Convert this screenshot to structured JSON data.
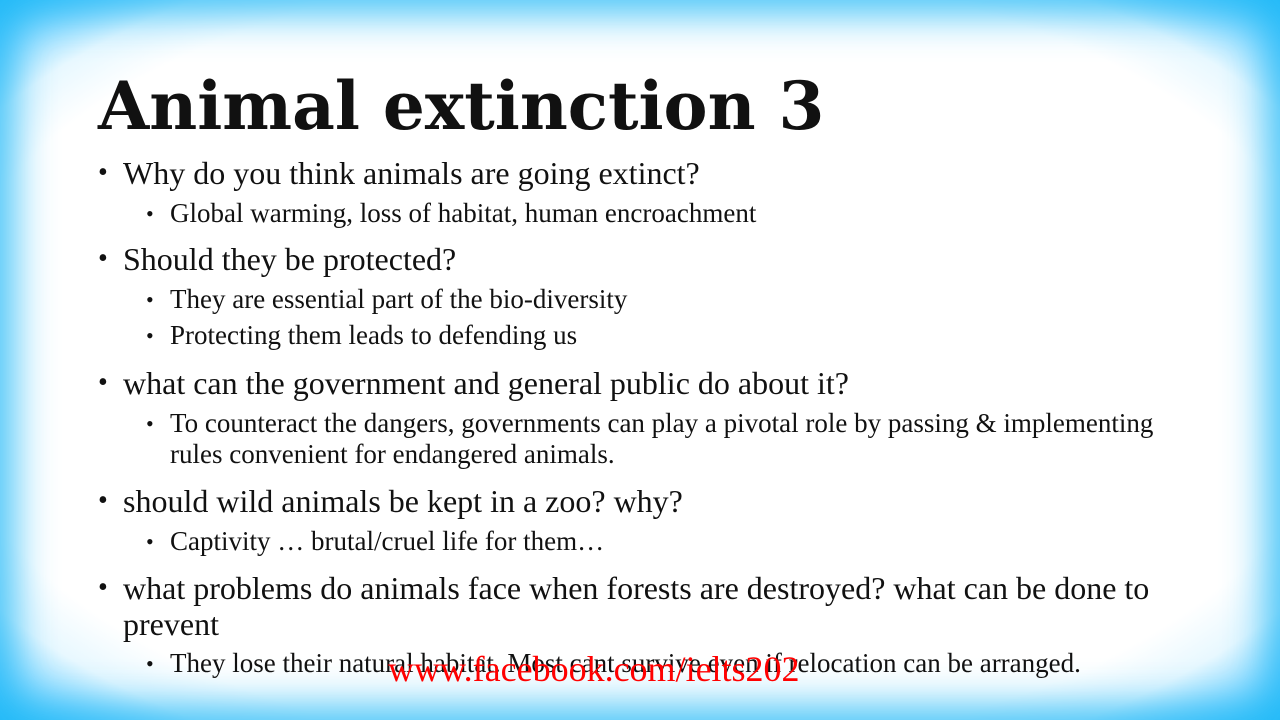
{
  "slide": {
    "title": "Animal extinction 3",
    "items": [
      {
        "question": "Why do you think animals are going extinct?",
        "answers": [
          "Global warming, loss of habitat, human encroachment"
        ]
      },
      {
        "question": "Should they be protected?",
        "answers": [
          "They are essential part of the bio-diversity",
          "Protecting them leads to defending us"
        ]
      },
      {
        "question": "what can the government and general public do about it?",
        "answers": [
          "To counteract the dangers, governments can play a pivotal role by passing & implementing rules convenient for endangered animals."
        ]
      },
      {
        "question": "should wild animals be kept in a zoo? why?",
        "answers": [
          "Captivity … brutal/cruel life for them…"
        ]
      },
      {
        "question": "what problems do animals face when forests are destroyed? what can be done to prevent",
        "answers": [
          "They lose their natural habitat. Most cant survive even if relocation can be arranged."
        ]
      }
    ],
    "watermark": "www.facebook.com/ielts202"
  },
  "colors": {
    "frame": "#22b8f7",
    "text": "#111111",
    "watermark": "#ff0000"
  }
}
